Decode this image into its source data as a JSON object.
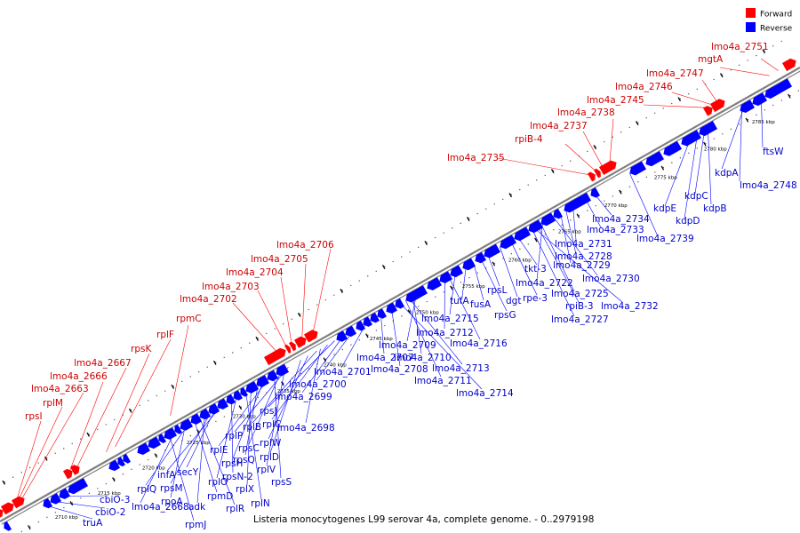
{
  "caption": "Listeria monocytogenes L99 serovar 4a, complete genome. - 0..2979198",
  "legend": [
    {
      "label": "Forward",
      "color": "#ff0000"
    },
    {
      "label": "Reverse",
      "color": "#0000ff"
    }
  ],
  "colors": {
    "forward": "#ff0000",
    "reverse": "#0000ff",
    "forward_label": "#cc0000",
    "reverse_label": "#0000cc",
    "axis": "#808080"
  },
  "ticks": [
    "2710 kbp",
    "2715 kbp",
    "2720 kbp",
    "2725 kbp",
    "2730 kbp",
    "2735 kbp",
    "2740 kbp",
    "2745 kbp",
    "2750 kbp",
    "2755 kbp",
    "2760 kbp",
    "2765 kbp",
    "2770 kbp",
    "2775 kbp",
    "2780 kbp",
    "2785 kbp"
  ],
  "forward_labels": [
    "lmo4a_2751",
    "mgtA",
    "lmo4a_2747",
    "lmo4a_2746",
    "lmo4a_2745",
    "lmo4a_2738",
    "lmo4a_2737",
    "rpiB-4",
    "lmo4a_2735",
    "lmo4a_2706",
    "lmo4a_2705",
    "lmo4a_2704",
    "lmo4a_2703",
    "lmo4a_2702",
    "lmo4a_2667",
    "lmo4a_2666",
    "lmo4a_2663",
    "rplM",
    "rpsI",
    "rpmC",
    "rplF",
    "rpsK"
  ],
  "reverse_labels": [
    "ftsW",
    "kdpA",
    "lmo4a_2748",
    "kdpB",
    "kdpC",
    "kdpD",
    "kdpE",
    "lmo4a_2739",
    "lmo4a_2734",
    "lmo4a_2733",
    "lmo4a_2731",
    "lmo4a_2728",
    "lmo4a_2729",
    "lmo4a_2730",
    "lmo4a_2722",
    "lmo4a_2725",
    "lmo4a_2732",
    "rpiB-3",
    "lmo4a_2727",
    "tkt-3",
    "rpe-3",
    "dgt",
    "rpsL",
    "rpsG",
    "fusA",
    "tufA",
    "lmo4a_2715",
    "lmo4a_2716",
    "lmo4a_2712",
    "lmo4a_2709",
    "lmo4a_2710",
    "lmo4a_2707",
    "lmo4a_2708",
    "lmo4a_2713",
    "lmo4a_2711",
    "lmo4a_2714",
    "lmo4a_2701",
    "lmo4a_2700",
    "lmo4a_2699",
    "rpsJ",
    "rplC",
    "lmo4a_2698",
    "rplB",
    "rplW",
    "rplD",
    "rplP",
    "rpsC",
    "rplV",
    "rpsS",
    "rplE",
    "rpsH",
    "rpsQ",
    "rplX",
    "rplN",
    "rplO",
    "rpsN-2",
    "infA",
    "secY",
    "rpsM",
    "adk",
    "rplR",
    "rpmD",
    "rplQ",
    "rpoA",
    "lmo4a_2668",
    "rpmJ",
    "cbiO-3",
    "cbiO-2",
    "truA"
  ]
}
